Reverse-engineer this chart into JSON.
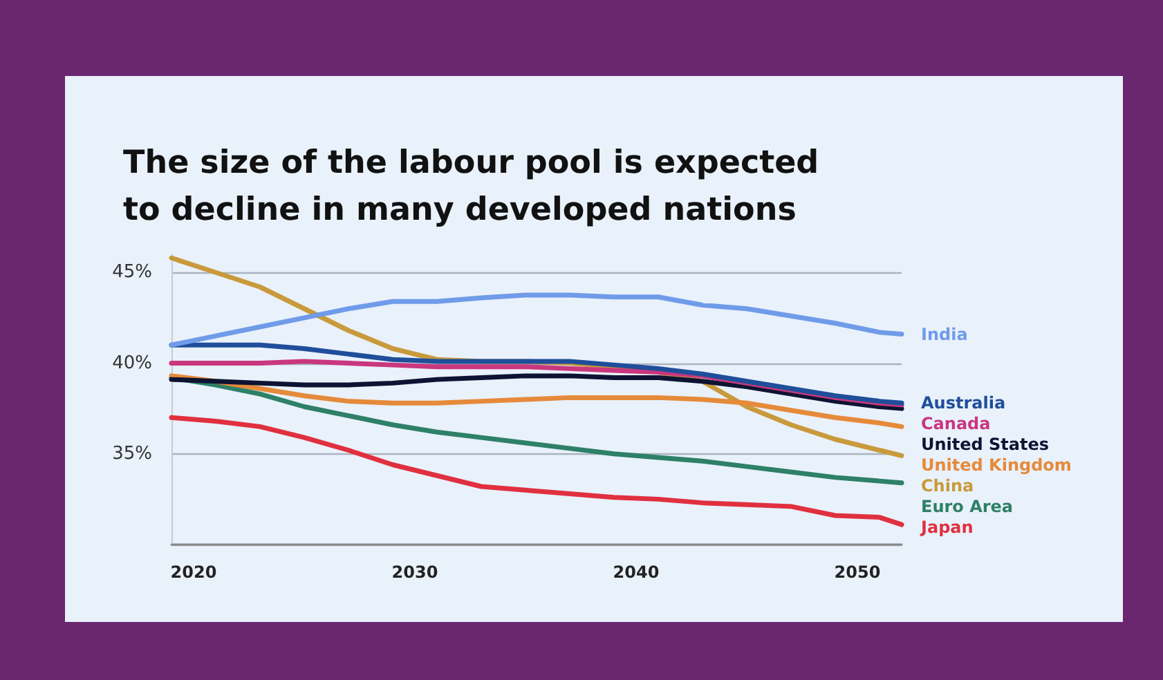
{
  "chart_data": {
    "type": "line",
    "title": "The size of the labour pool is expected\nto decline in many developed nations",
    "x": [
      2019,
      2021,
      2023,
      2025,
      2027,
      2029,
      2031,
      2033,
      2035,
      2037,
      2039,
      2041,
      2043,
      2045,
      2047,
      2049,
      2051,
      2052
    ],
    "xlim": [
      2019,
      2052
    ],
    "xticks": [
      2020,
      2030,
      2040,
      2050
    ],
    "ylim": [
      30,
      46
    ],
    "yticks": [
      {
        "value": 30,
        "label": null
      },
      {
        "value": 35,
        "label": "35%"
      },
      {
        "value": 40,
        "label": "40%"
      },
      {
        "value": 45,
        "label": "45%"
      }
    ],
    "grid": "y",
    "legend": false,
    "marker": "none",
    "line_style": "solid",
    "series": [
      {
        "name": "India",
        "color": "#6f9be8",
        "values": [
          41.0,
          41.5,
          42.0,
          42.5,
          43.0,
          43.4,
          43.4,
          43.6,
          43.75,
          43.75,
          43.65,
          43.65,
          43.2,
          43.0,
          42.6,
          42.2,
          41.7,
          41.6
        ]
      },
      {
        "name": "Australia",
        "color": "#1f4e9a",
        "values": [
          41.0,
          41.0,
          41.0,
          40.8,
          40.5,
          40.2,
          40.1,
          40.1,
          40.1,
          40.1,
          39.9,
          39.7,
          39.4,
          39.0,
          38.6,
          38.2,
          37.9,
          37.8
        ]
      },
      {
        "name": "Canada",
        "color": "#c9377e",
        "values": [
          40.0,
          40.0,
          40.0,
          40.1,
          40.0,
          39.9,
          39.8,
          39.8,
          39.8,
          39.7,
          39.6,
          39.5,
          39.3,
          38.9,
          38.5,
          38.1,
          37.8,
          37.7
        ]
      },
      {
        "name": "United States",
        "color": "#0d1433",
        "values": [
          39.1,
          39.0,
          38.9,
          38.8,
          38.8,
          38.9,
          39.1,
          39.2,
          39.3,
          39.3,
          39.2,
          39.2,
          39.0,
          38.7,
          38.3,
          37.9,
          37.6,
          37.5
        ]
      },
      {
        "name": "United Kingdom",
        "color": "#e58a3a",
        "values": [
          39.3,
          39.0,
          38.6,
          38.2,
          37.9,
          37.8,
          37.8,
          37.9,
          38.0,
          38.1,
          38.1,
          38.1,
          38.0,
          37.8,
          37.4,
          37.0,
          36.7,
          36.5
        ]
      },
      {
        "name": "China",
        "color": "#c99a3c",
        "values": [
          45.8,
          45.0,
          44.2,
          43.0,
          41.8,
          40.8,
          40.2,
          40.1,
          40.1,
          40.0,
          39.8,
          39.5,
          39.0,
          37.6,
          36.6,
          35.8,
          35.2,
          34.9
        ]
      },
      {
        "name": "Euro Area",
        "color": "#2e8068",
        "values": [
          39.2,
          38.8,
          38.3,
          37.6,
          37.1,
          36.6,
          36.2,
          35.9,
          35.6,
          35.3,
          35.0,
          34.8,
          34.6,
          34.3,
          34.0,
          33.7,
          33.5,
          33.4
        ]
      },
      {
        "name": "Japan",
        "color": "#e0303f",
        "values": [
          37.0,
          36.8,
          36.5,
          35.9,
          35.2,
          34.4,
          33.8,
          33.2,
          33.0,
          32.8,
          32.6,
          32.5,
          32.3,
          32.2,
          32.1,
          31.6,
          31.5,
          31.1
        ]
      }
    ]
  }
}
